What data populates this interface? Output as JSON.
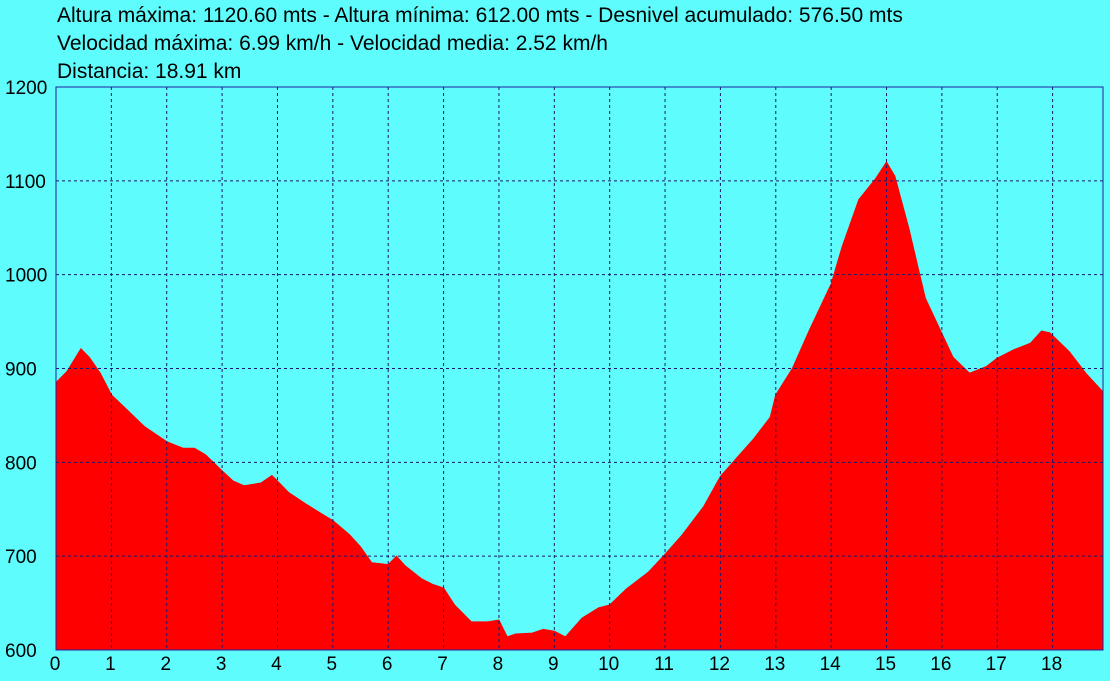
{
  "stats": {
    "line1": "Altura máxima: 1120.60 mts - Altura mínima: 612.00 mts - Desnivel acumulado: 576.50 mts",
    "line2": "Velocidad máxima: 6.99 km/h - Velocidad media: 2.52 km/h",
    "line3": "Distancia: 18.91 km"
  },
  "colors": {
    "background": "#5efcfc",
    "fill": "#ff0000",
    "grid": "#1a1a6e",
    "frame": "#2020a0"
  },
  "chart_data": {
    "type": "area",
    "title": "",
    "xlabel": "",
    "ylabel": "",
    "xlim": [
      0,
      18.91
    ],
    "ylim": [
      600,
      1200
    ],
    "xticks": [
      0,
      1,
      2,
      3,
      4,
      5,
      6,
      7,
      8,
      9,
      10,
      11,
      12,
      13,
      14,
      15,
      16,
      17,
      18
    ],
    "yticks": [
      600,
      700,
      800,
      900,
      1000,
      1100,
      1200
    ],
    "grid": true,
    "legend": "none",
    "series": [
      {
        "x": [
          0,
          0.2,
          0.45,
          0.6,
          0.8,
          1.0,
          1.3,
          1.6,
          2.0,
          2.3,
          2.5,
          2.7,
          3.0,
          3.2,
          3.4,
          3.7,
          3.9,
          4.0,
          4.2,
          4.5,
          4.8,
          5.0,
          5.3,
          5.5,
          5.7,
          6.0,
          6.15,
          6.3,
          6.6,
          6.8,
          7.0,
          7.2,
          7.5,
          7.8,
          8.0,
          8.15,
          8.3,
          8.6,
          8.8,
          9.0,
          9.2,
          9.5,
          9.8,
          10.0,
          10.3,
          10.7,
          11.0,
          11.3,
          11.7,
          12.0,
          12.3,
          12.6,
          12.9,
          13.0,
          13.3,
          13.6,
          14.0,
          14.2,
          14.5,
          14.8,
          15.0,
          15.15,
          15.4,
          15.7,
          15.9,
          16.2,
          16.5,
          16.8,
          17.0,
          17.3,
          17.6,
          17.8,
          17.95,
          18.3,
          18.6,
          18.91
        ],
        "values": [
          885,
          897,
          921,
          912,
          895,
          872,
          855,
          838,
          822,
          815,
          815,
          808,
          791,
          780,
          775,
          778,
          786,
          780,
          768,
          756,
          745,
          738,
          723,
          710,
          693,
          691,
          700,
          690,
          676,
          670,
          666,
          648,
          630,
          630,
          632,
          614,
          617,
          618,
          622,
          620,
          614,
          634,
          645,
          648,
          665,
          683,
          702,
          722,
          753,
          785,
          805,
          825,
          848,
          872,
          900,
          940,
          990,
          1030,
          1080,
          1102,
          1120,
          1105,
          1050,
          975,
          950,
          912,
          895,
          902,
          911,
          920,
          927,
          940,
          938,
          918,
          895,
          875
        ]
      }
    ]
  }
}
